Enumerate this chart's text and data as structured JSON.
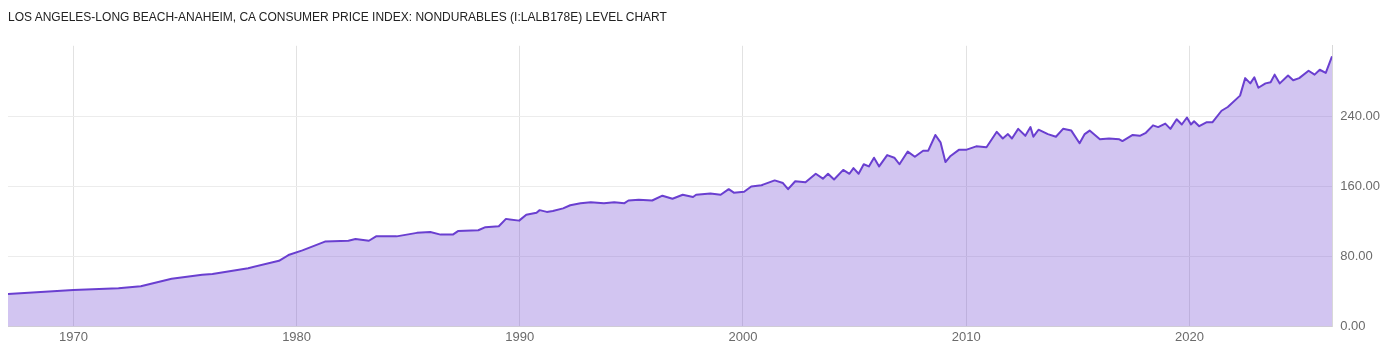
{
  "chart_data": {
    "type": "area",
    "title": "LOS ANGELES-LONG BEACH-ANAHEIM, CA CONSUMER PRICE INDEX: NONDURABLES (I:LALB178E) LEVEL CHART",
    "x": [
      1967.07,
      1970.0,
      1972.02,
      1973.02,
      1974.4,
      1975.77,
      1976.23,
      1977.83,
      1979.21,
      1979.67,
      1980.26,
      1981.27,
      1982.32,
      1982.64,
      1983.24,
      1983.56,
      1984.48,
      1985.39,
      1985.99,
      1986.45,
      1987.0,
      1987.23,
      1988.14,
      1988.46,
      1989.06,
      1989.38,
      1989.97,
      1990.29,
      1990.75,
      1990.89,
      1991.21,
      1991.48,
      1991.94,
      1992.26,
      1992.72,
      1993.18,
      1993.77,
      1994.23,
      1994.69,
      1994.87,
      1995.33,
      1995.93,
      1996.39,
      1996.84,
      1997.3,
      1997.76,
      1997.9,
      1998.54,
      1999.0,
      1999.36,
      1999.59,
      2000.05,
      2000.37,
      2000.83,
      2001.42,
      2001.79,
      2002.02,
      2002.34,
      2002.8,
      2003.26,
      2003.58,
      2003.81,
      2004.08,
      2004.49,
      2004.77,
      2004.95,
      2005.18,
      2005.41,
      2005.64,
      2005.87,
      2006.1,
      2006.46,
      2006.78,
      2007.01,
      2007.38,
      2007.7,
      2008.07,
      2008.3,
      2008.62,
      2008.85,
      2009.07,
      2009.3,
      2009.67,
      2009.99,
      2010.45,
      2010.91,
      2011.37,
      2011.64,
      2011.87,
      2012.05,
      2012.33,
      2012.65,
      2012.88,
      2013.01,
      2013.24,
      2013.66,
      2014.02,
      2014.34,
      2014.71,
      2015.08,
      2015.31,
      2015.53,
      2015.99,
      2016.4,
      2016.86,
      2017.0,
      2017.46,
      2017.78,
      2018.05,
      2018.37,
      2018.6,
      2018.92,
      2019.15,
      2019.43,
      2019.66,
      2019.89,
      2020.07,
      2020.21,
      2020.44,
      2020.76,
      2021.03,
      2021.44,
      2021.72,
      2022.27,
      2022.5,
      2022.73,
      2022.91,
      2023.09,
      2023.41,
      2023.64,
      2023.82,
      2024.05,
      2024.42,
      2024.65,
      2024.92,
      2025.34,
      2025.61,
      2025.84,
      2026.11,
      2026.39
    ],
    "series": [
      {
        "color": "#6a3fd0",
        "values": [
          37,
          41.5,
          43.7,
          46,
          54.6,
          59,
          60,
          66.6,
          75,
          82,
          87,
          97,
          98,
          100,
          98,
          103,
          103,
          107,
          108,
          105,
          105,
          109,
          110,
          113.5,
          114.6,
          123,
          121,
          127.7,
          130,
          133,
          131,
          132,
          135,
          138.6,
          141,
          142,
          141,
          142,
          141,
          144,
          145,
          144,
          149.5,
          146,
          150.6,
          148,
          150.6,
          152,
          150.6,
          157,
          153,
          154,
          160,
          161.5,
          167,
          164,
          157,
          166,
          165,
          174.6,
          169,
          174.6,
          168,
          179,
          174.6,
          181,
          174.6,
          185.5,
          183,
          193,
          183,
          196,
          193,
          185.5,
          200,
          194,
          201,
          201,
          219,
          210.6,
          188,
          195,
          202,
          202,
          206,
          205,
          222.6,
          215,
          220,
          215,
          226,
          218,
          228,
          217,
          225,
          220,
          217,
          226,
          224,
          209.5,
          220,
          224,
          214,
          215,
          214,
          212,
          219,
          218,
          221.5,
          230,
          228,
          232,
          226,
          237,
          231,
          239,
          231,
          234.6,
          229,
          233.5,
          233.5,
          246.7,
          251,
          264,
          284,
          278,
          285,
          273,
          278,
          279.4,
          288,
          278,
          287,
          281.6,
          284,
          292.5,
          288,
          293.6,
          290,
          309
        ]
      }
    ],
    "xlim": [
      1967.07,
      2026.4
    ],
    "xticks": [
      1970,
      1980,
      1990,
      2000,
      2010,
      2020
    ],
    "ylim": [
      0,
      321
    ],
    "yticks": [
      {
        "value": 0,
        "label": "0.00"
      },
      {
        "value": 80,
        "label": "80.00"
      },
      {
        "value": 160,
        "label": "160.00"
      },
      {
        "value": 240,
        "label": "240.00"
      }
    ],
    "grid": true,
    "legend": false
  }
}
